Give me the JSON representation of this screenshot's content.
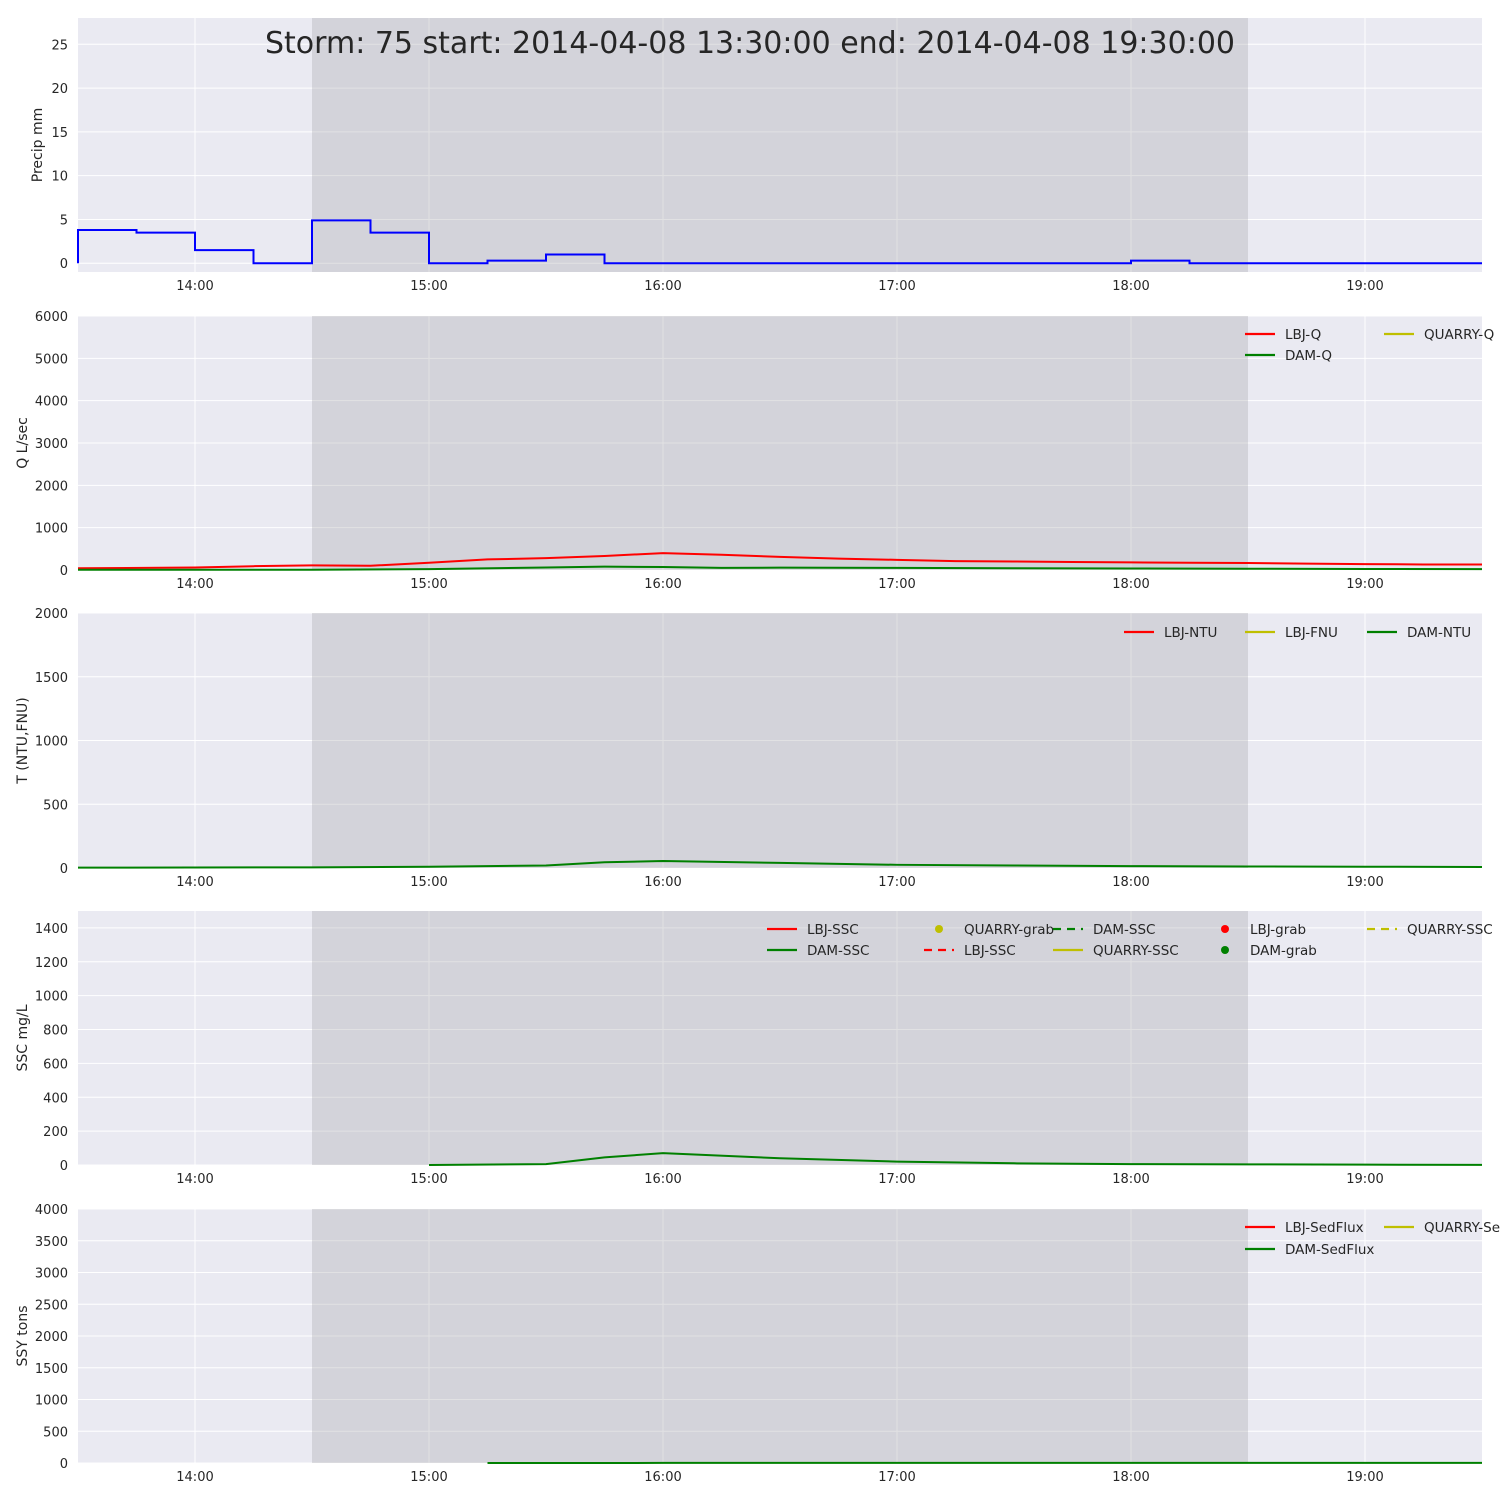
{
  "colors": {
    "axes_bg": "#eaeaf2",
    "grid": "#ffffff",
    "storm_shade": "#a9a9b0",
    "precip": "#0000ff",
    "lbj": "#ff0000",
    "quarry": "#bfbf00",
    "dam": "#008000"
  },
  "chart_data": [
    {
      "id": "precip",
      "type": "line",
      "title": "Storm: 75 start: 2014-04-08 13:30:00 end: 2014-04-08 19:30:00",
      "ylabel": "Precip mm",
      "xlim": [
        "13:30",
        "19:30"
      ],
      "ylim": [
        -1,
        28
      ],
      "yticks": [
        0,
        5,
        10,
        15,
        20,
        25
      ],
      "xticks": [
        "14:00",
        "15:00",
        "16:00",
        "17:00",
        "18:00",
        "19:00"
      ],
      "shade": [
        "14:30",
        "18:30"
      ],
      "grid": true,
      "legend": [],
      "series": [
        {
          "key": "precip",
          "style": "steps-post",
          "x": [
            "13:30",
            "13:45",
            "14:00",
            "14:15",
            "14:30",
            "14:45",
            "15:00",
            "15:15",
            "15:30",
            "15:45",
            "16:00",
            "16:15",
            "16:30",
            "16:45",
            "17:00",
            "17:15",
            "17:30",
            "17:45",
            "18:00",
            "18:15",
            "18:30",
            "18:45",
            "19:00",
            "19:15",
            "19:30"
          ],
          "y": [
            3.8,
            3.5,
            1.5,
            0,
            4.9,
            3.5,
            0,
            0.3,
            1.0,
            0,
            0,
            0,
            0,
            0,
            0,
            0,
            0,
            0,
            0.3,
            0,
            0,
            0,
            0,
            0,
            0
          ]
        }
      ]
    },
    {
      "id": "discharge",
      "type": "line",
      "ylabel": "Q L/sec",
      "xlim": [
        "13:30",
        "19:30"
      ],
      "ylim": [
        0,
        6000
      ],
      "yticks": [
        0,
        1000,
        2000,
        3000,
        4000,
        5000,
        6000
      ],
      "xticks": [
        "14:00",
        "15:00",
        "16:00",
        "17:00",
        "18:00",
        "19:00"
      ],
      "shade": [
        "14:30",
        "18:30"
      ],
      "grid": true,
      "legend_columns": 2,
      "legend": [
        {
          "label": "LBJ-Q",
          "key": "lbj",
          "marker": "line"
        },
        {
          "label": "DAM-Q",
          "key": "dam",
          "marker": "line"
        },
        {
          "label": "QUARRY-Q",
          "key": "quarry",
          "marker": "line"
        }
      ],
      "series": [
        {
          "key": "lbj",
          "x": [
            "13:30",
            "14:00",
            "14:15",
            "14:30",
            "14:45",
            "15:00",
            "15:15",
            "15:30",
            "15:45",
            "16:00",
            "16:15",
            "16:30",
            "16:45",
            "17:00",
            "17:15",
            "17:30",
            "17:45",
            "18:00",
            "18:15",
            "18:30",
            "18:45",
            "19:00",
            "19:15",
            "19:30"
          ],
          "y": [
            40,
            60,
            90,
            110,
            100,
            170,
            250,
            280,
            330,
            400,
            360,
            310,
            270,
            240,
            210,
            200,
            190,
            180,
            170,
            165,
            150,
            140,
            130,
            130
          ]
        },
        {
          "key": "dam",
          "x": [
            "13:30",
            "14:30",
            "15:00",
            "15:30",
            "15:45",
            "16:00",
            "16:15",
            "16:30",
            "17:00",
            "17:30",
            "18:00",
            "18:30",
            "19:00",
            "19:30"
          ],
          "y": [
            5,
            5,
            20,
            60,
            80,
            70,
            50,
            55,
            50,
            40,
            35,
            30,
            25,
            20
          ]
        }
      ]
    },
    {
      "id": "turbidity",
      "type": "line",
      "ylabel": "T (NTU,FNU)",
      "xlim": [
        "13:30",
        "19:30"
      ],
      "ylim": [
        0,
        2000
      ],
      "yticks": [
        0,
        500,
        1000,
        1500,
        2000
      ],
      "xticks": [
        "14:00",
        "15:00",
        "16:00",
        "17:00",
        "18:00",
        "19:00"
      ],
      "shade": [
        "14:30",
        "18:30"
      ],
      "grid": true,
      "legend_columns": 3,
      "legend": [
        {
          "label": "LBJ-NTU",
          "key": "lbj",
          "marker": "line"
        },
        {
          "label": "LBJ-FNU",
          "key": "quarry",
          "marker": "line"
        },
        {
          "label": "DAM-NTU",
          "key": "dam",
          "marker": "line"
        }
      ],
      "series": [
        {
          "key": "dam",
          "x": [
            "13:30",
            "14:30",
            "15:00",
            "15:30",
            "15:45",
            "16:00",
            "16:30",
            "17:00",
            "17:30",
            "18:00",
            "18:30",
            "19:00",
            "19:30"
          ],
          "y": [
            3,
            5,
            10,
            20,
            45,
            55,
            40,
            25,
            20,
            15,
            12,
            10,
            8
          ]
        }
      ]
    },
    {
      "id": "ssc",
      "type": "line",
      "ylabel": "SSC mg/L",
      "xlim": [
        "13:30",
        "19:30"
      ],
      "ylim": [
        0,
        1500
      ],
      "yticks": [
        0,
        200,
        400,
        600,
        800,
        1000,
        1200,
        1400
      ],
      "xticks": [
        "14:00",
        "15:00",
        "16:00",
        "17:00",
        "18:00",
        "19:00"
      ],
      "shade": [
        "14:30",
        "18:30"
      ],
      "grid": true,
      "legend_columns": 5,
      "legend": [
        {
          "label": "LBJ-SSC",
          "key": "lbj",
          "marker": "line"
        },
        {
          "label": "DAM-SSC",
          "key": "dam",
          "marker": "line"
        },
        {
          "label": "QUARRY-grab",
          "key": "quarry",
          "marker": "dot"
        },
        {
          "label": "LBJ-SSC",
          "key": "lbj",
          "marker": "dashed"
        },
        {
          "label": "DAM-SSC",
          "key": "dam",
          "marker": "dashed"
        },
        {
          "label": "QUARRY-SSC",
          "key": "quarry",
          "marker": "line"
        },
        {
          "label": "LBJ-grab",
          "key": "lbj",
          "marker": "dot"
        },
        {
          "label": "DAM-grab",
          "key": "dam",
          "marker": "dot"
        },
        {
          "label": "QUARRY-SSC",
          "key": "quarry",
          "marker": "dashed"
        }
      ],
      "series": [
        {
          "key": "dam",
          "x": [
            "15:00",
            "15:30",
            "15:45",
            "16:00",
            "16:30",
            "17:00",
            "17:30",
            "18:00",
            "18:30",
            "19:00",
            "19:30"
          ],
          "y": [
            0,
            5,
            45,
            70,
            40,
            20,
            10,
            5,
            4,
            2,
            1
          ]
        }
      ]
    },
    {
      "id": "sedflux",
      "type": "line",
      "ylabel": "SSY tons",
      "xlim": [
        "13:30",
        "19:30"
      ],
      "ylim": [
        0,
        4000
      ],
      "yticks": [
        0,
        500,
        1000,
        1500,
        2000,
        2500,
        3000,
        3500,
        4000
      ],
      "xticks": [
        "14:00",
        "15:00",
        "16:00",
        "17:00",
        "18:00",
        "19:00"
      ],
      "shade": [
        "14:30",
        "18:30"
      ],
      "grid": true,
      "legend_columns": 2,
      "legend": [
        {
          "label": "LBJ-SedFlux",
          "key": "lbj",
          "marker": "line"
        },
        {
          "label": "DAM-SedFlux",
          "key": "dam",
          "marker": "line"
        },
        {
          "label": "QUARRY-SedFlux",
          "key": "quarry",
          "marker": "line"
        }
      ],
      "series": [
        {
          "key": "dam",
          "x": [
            "15:15",
            "16:00",
            "17:00",
            "18:00",
            "19:00",
            "19:30"
          ],
          "y": [
            0,
            1,
            1,
            1,
            1,
            1
          ]
        }
      ]
    }
  ]
}
